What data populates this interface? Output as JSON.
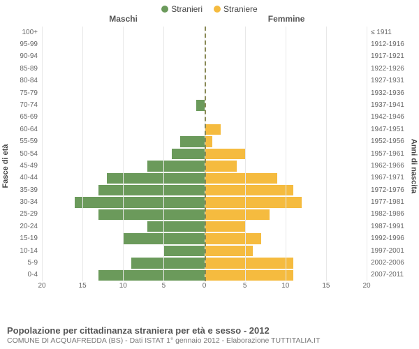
{
  "legend": {
    "male_label": "Stranieri",
    "female_label": "Straniere",
    "male_color": "#6b9a5b",
    "female_color": "#f5bb3f"
  },
  "column_headers": {
    "left": "Maschi",
    "right": "Femmine"
  },
  "axis_titles": {
    "left": "Fasce di età",
    "right": "Anni di nascita"
  },
  "chart": {
    "type": "population-pyramid",
    "x_max": 20,
    "x_ticks": [
      20,
      15,
      10,
      5,
      0,
      5,
      10,
      15,
      20
    ],
    "grid_color": "#e8e8e8",
    "center_line_color": "#888855",
    "bar_gap": 2,
    "bar_colors": {
      "male": "#6b9a5b",
      "female": "#f5bb3f"
    },
    "rows": [
      {
        "age": "100+",
        "birth": "≤ 1911",
        "m": 0,
        "f": 0
      },
      {
        "age": "95-99",
        "birth": "1912-1916",
        "m": 0,
        "f": 0
      },
      {
        "age": "90-94",
        "birth": "1917-1921",
        "m": 0,
        "f": 0
      },
      {
        "age": "85-89",
        "birth": "1922-1926",
        "m": 0,
        "f": 0
      },
      {
        "age": "80-84",
        "birth": "1927-1931",
        "m": 0,
        "f": 0
      },
      {
        "age": "75-79",
        "birth": "1932-1936",
        "m": 0,
        "f": 0
      },
      {
        "age": "70-74",
        "birth": "1937-1941",
        "m": 1,
        "f": 0
      },
      {
        "age": "65-69",
        "birth": "1942-1946",
        "m": 0,
        "f": 0
      },
      {
        "age": "60-64",
        "birth": "1947-1951",
        "m": 0,
        "f": 2
      },
      {
        "age": "55-59",
        "birth": "1952-1956",
        "m": 3,
        "f": 1
      },
      {
        "age": "50-54",
        "birth": "1957-1961",
        "m": 4,
        "f": 5
      },
      {
        "age": "45-49",
        "birth": "1962-1966",
        "m": 7,
        "f": 4
      },
      {
        "age": "40-44",
        "birth": "1967-1971",
        "m": 12,
        "f": 9
      },
      {
        "age": "35-39",
        "birth": "1972-1976",
        "m": 13,
        "f": 11
      },
      {
        "age": "30-34",
        "birth": "1977-1981",
        "m": 16,
        "f": 12
      },
      {
        "age": "25-29",
        "birth": "1982-1986",
        "m": 13,
        "f": 8
      },
      {
        "age": "20-24",
        "birth": "1987-1991",
        "m": 7,
        "f": 5
      },
      {
        "age": "15-19",
        "birth": "1992-1996",
        "m": 10,
        "f": 7
      },
      {
        "age": "10-14",
        "birth": "1997-2001",
        "m": 5,
        "f": 6
      },
      {
        "age": "5-9",
        "birth": "2002-2006",
        "m": 9,
        "f": 11
      },
      {
        "age": "0-4",
        "birth": "2007-2011",
        "m": 13,
        "f": 11
      }
    ]
  },
  "footer": {
    "title": "Popolazione per cittadinanza straniera per età e sesso - 2012",
    "subtitle": "COMUNE DI ACQUAFREDDA (BS) - Dati ISTAT 1° gennaio 2012 - Elaborazione TUTTITALIA.IT"
  }
}
